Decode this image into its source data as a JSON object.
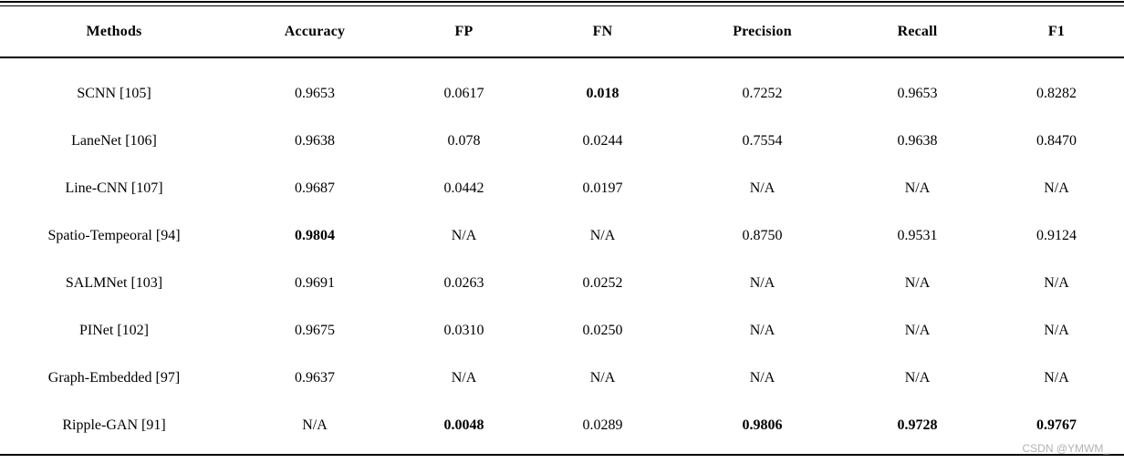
{
  "table": {
    "columns": [
      "Methods",
      "Accuracy",
      "FP",
      "FN",
      "Precision",
      "Recall",
      "F1"
    ],
    "rows": [
      {
        "cells": [
          "SCNN [105]",
          "0.9653",
          "0.0617",
          "0.018",
          "0.7252",
          "0.9653",
          "0.8282"
        ],
        "bold": [
          3
        ]
      },
      {
        "cells": [
          "LaneNet [106]",
          "0.9638",
          "0.078",
          "0.0244",
          "0.7554",
          "0.9638",
          "0.8470"
        ],
        "bold": []
      },
      {
        "cells": [
          "Line-CNN [107]",
          "0.9687",
          "0.0442",
          "0.0197",
          "N/A",
          "N/A",
          "N/A"
        ],
        "bold": []
      },
      {
        "cells": [
          "Spatio-Tempeoral [94]",
          "0.9804",
          "N/A",
          "N/A",
          "0.8750",
          "0.9531",
          "0.9124"
        ],
        "bold": [
          1
        ]
      },
      {
        "cells": [
          "SALMNet [103]",
          "0.9691",
          "0.0263",
          "0.0252",
          "N/A",
          "N/A",
          "N/A"
        ],
        "bold": []
      },
      {
        "cells": [
          "PINet [102]",
          "0.9675",
          "0.0310",
          "0.0250",
          "N/A",
          "N/A",
          "N/A"
        ],
        "bold": []
      },
      {
        "cells": [
          "Graph-Embedded [97]",
          "0.9637",
          "N/A",
          "N/A",
          "N/A",
          "N/A",
          "N/A"
        ],
        "bold": []
      },
      {
        "cells": [
          "Ripple-GAN [91]",
          "N/A",
          "0.0048",
          "0.0289",
          "0.9806",
          "0.9728",
          "0.9767"
        ],
        "bold": [
          2,
          4,
          5,
          6
        ]
      }
    ]
  },
  "watermark": {
    "text": "CSDN @YMWM_",
    "color": "#b2b2b2"
  },
  "colors": {
    "text": "#000000",
    "rule": "#000000",
    "background": "#ffffff"
  }
}
